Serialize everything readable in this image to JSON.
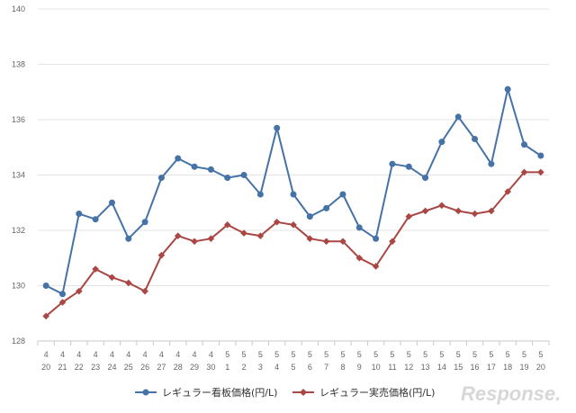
{
  "chart_data": {
    "type": "line",
    "categories": [
      {
        "month": "4",
        "day": "20"
      },
      {
        "month": "4",
        "day": "21"
      },
      {
        "month": "4",
        "day": "22"
      },
      {
        "month": "4",
        "day": "23"
      },
      {
        "month": "4",
        "day": "24"
      },
      {
        "month": "4",
        "day": "25"
      },
      {
        "month": "4",
        "day": "26"
      },
      {
        "month": "4",
        "day": "27"
      },
      {
        "month": "4",
        "day": "28"
      },
      {
        "month": "4",
        "day": "29"
      },
      {
        "month": "4",
        "day": "30"
      },
      {
        "month": "5",
        "day": "1"
      },
      {
        "month": "5",
        "day": "2"
      },
      {
        "month": "5",
        "day": "3"
      },
      {
        "month": "5",
        "day": "4"
      },
      {
        "month": "5",
        "day": "5"
      },
      {
        "month": "5",
        "day": "6"
      },
      {
        "month": "5",
        "day": "7"
      },
      {
        "month": "5",
        "day": "8"
      },
      {
        "month": "5",
        "day": "9"
      },
      {
        "month": "5",
        "day": "10"
      },
      {
        "month": "5",
        "day": "11"
      },
      {
        "month": "5",
        "day": "12"
      },
      {
        "month": "5",
        "day": "13"
      },
      {
        "month": "5",
        "day": "14"
      },
      {
        "month": "5",
        "day": "15"
      },
      {
        "month": "5",
        "day": "16"
      },
      {
        "month": "5",
        "day": "17"
      },
      {
        "month": "5",
        "day": "18"
      },
      {
        "month": "5",
        "day": "19"
      },
      {
        "month": "5",
        "day": "20"
      }
    ],
    "series": [
      {
        "name": "レギュラー看板価格(円/L)",
        "color": "#4572a7",
        "marker": "circle",
        "values": [
          130.0,
          129.7,
          132.6,
          132.4,
          133.0,
          131.7,
          132.3,
          133.9,
          134.6,
          134.3,
          134.2,
          133.9,
          134.0,
          133.3,
          135.7,
          133.3,
          132.5,
          132.8,
          133.3,
          132.1,
          131.7,
          134.4,
          134.3,
          133.9,
          135.2,
          136.1,
          135.3,
          134.4,
          137.1,
          135.1,
          134.7
        ]
      },
      {
        "name": "レギュラー実売価格(円/L)",
        "color": "#aa4643",
        "marker": "diamond",
        "values": [
          128.9,
          129.4,
          129.8,
          130.6,
          130.3,
          130.1,
          129.8,
          131.1,
          131.8,
          131.6,
          131.7,
          132.2,
          131.9,
          131.8,
          132.3,
          132.2,
          131.7,
          131.6,
          131.6,
          131.0,
          130.7,
          131.6,
          132.5,
          132.7,
          132.9,
          132.7,
          132.6,
          132.7,
          133.4,
          134.1,
          134.1
        ]
      }
    ],
    "y_ticks": [
      "128",
      "130",
      "132",
      "134",
      "136",
      "138",
      "140"
    ],
    "ylim": [
      128,
      140
    ],
    "grid": true,
    "legend_position": "bottom-center",
    "title": "",
    "xlabel": "",
    "ylabel": ""
  },
  "watermark": {
    "text": "Response."
  }
}
